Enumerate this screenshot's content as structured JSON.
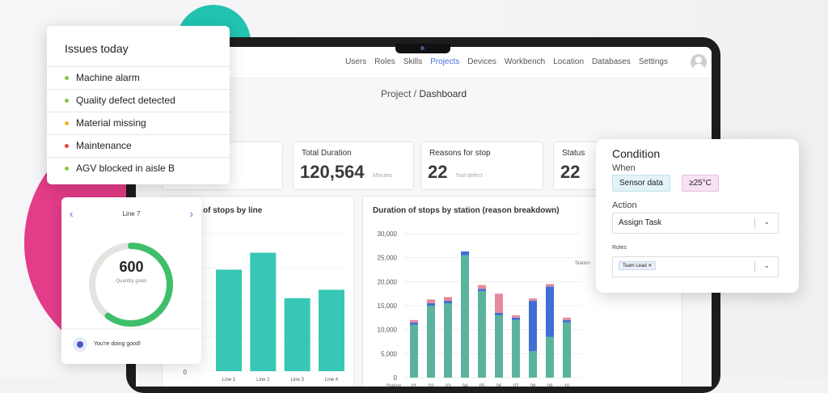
{
  "nav": {
    "items": [
      "Users",
      "Roles",
      "Skills",
      "Projects",
      "Devices",
      "Workbench",
      "Location",
      "Databases",
      "Settings"
    ],
    "active": "Projects"
  },
  "breadcrumb": {
    "parent": "Project",
    "sep": "/",
    "current": "Dashboard"
  },
  "stats": [
    {
      "label": "Total Duration",
      "value": "120,564",
      "unit": "Minutes"
    },
    {
      "label": "Reasons for stop",
      "value": "22",
      "unit": "Tool defect"
    },
    {
      "label": "Status",
      "value": "22"
    }
  ],
  "panel_left": {
    "title": "of stops by line"
  },
  "panel_right": {
    "title": "Duration of stops by station (reason breakdown)",
    "legend_word": "Station"
  },
  "issues": {
    "title": "Issues today",
    "items": [
      {
        "label": "Machine alarm",
        "color": "#8bc34a"
      },
      {
        "label": "Quality defect detected",
        "color": "#8bc34a"
      },
      {
        "label": "Material missing",
        "color": "#e4b829"
      },
      {
        "label": "Maintenance",
        "color": "#e2453a"
      },
      {
        "label": "AGV blocked in aisle B",
        "color": "#8bc34a"
      }
    ]
  },
  "gauge": {
    "title": "Line 7",
    "value": "600",
    "caption": "Quantity goals",
    "progress": 0.6,
    "message": "You're doing good!"
  },
  "condition": {
    "title": "Condition",
    "when_label": "When",
    "when_chip": "Sensor data",
    "when_value": "≥25°C",
    "action_label": "Action",
    "action_value": "Assign Task",
    "roles_label": "Roles",
    "roles_tag": "Team Lead"
  },
  "chart_data": [
    {
      "type": "bar",
      "title": "of stops by line",
      "categories": [
        "Line 1",
        "Line 2",
        "Line 3",
        "Line 4"
      ],
      "values": [
        96,
        112,
        69,
        77
      ],
      "y_tick_labels": [
        "0"
      ],
      "ylim": [
        0,
        130
      ],
      "grid": true,
      "color": "#37c7b4"
    },
    {
      "type": "bar",
      "title": "Duration of stops by station (reason breakdown)",
      "categories": [
        "01",
        "02",
        "03",
        "04",
        "05",
        "06",
        "07",
        "08",
        "09",
        "10"
      ],
      "xlabel": "Station",
      "ylim": [
        0,
        30000
      ],
      "yticks": [
        0,
        5000,
        10000,
        15000,
        20000,
        25000,
        30000
      ],
      "y_tick_labels": [
        "0",
        "5,000",
        "10,000",
        "15,000",
        "20,000",
        "25,000",
        "30,000"
      ],
      "grid": true,
      "stacked": true,
      "series": [
        {
          "color": "#5bb39e",
          "values": [
            11000,
            15000,
            15500,
            25500,
            18000,
            13000,
            12000,
            5500,
            8500,
            11500
          ]
        },
        {
          "color": "#3f6fd4",
          "values": [
            500,
            500,
            500,
            800,
            500,
            500,
            500,
            10500,
            10500,
            500
          ]
        },
        {
          "color": "#e48a9a",
          "values": [
            500,
            800,
            800,
            0,
            800,
            4000,
            500,
            500,
            500,
            500
          ]
        }
      ]
    }
  ]
}
